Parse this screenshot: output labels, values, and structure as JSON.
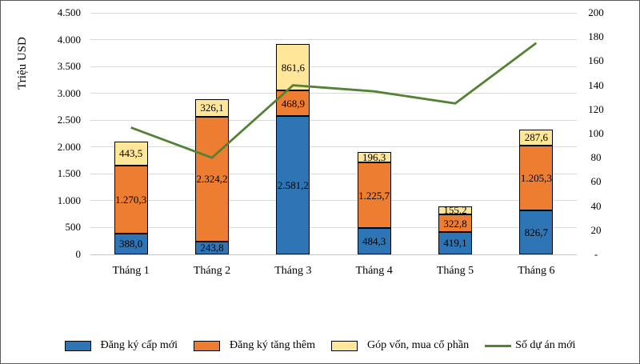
{
  "chart_data": {
    "type": "combo-stacked-bar-line",
    "title": "",
    "categories": [
      "Tháng 1",
      "Tháng 2",
      "Tháng 3",
      "Tháng 4",
      "Tháng 5",
      "Tháng 6"
    ],
    "series": [
      {
        "name": "Đăng ký cấp mới",
        "type": "bar",
        "stacked": true,
        "axis": "left",
        "color": "#2E75B6",
        "values": [
          388.0,
          243.8,
          2581.2,
          484.3,
          419.1,
          826.7
        ],
        "labels": [
          "388,0",
          "243,8",
          "2.581,2",
          "484,3",
          "419,1",
          "826,7"
        ]
      },
      {
        "name": "Đăng ký tăng thêm",
        "type": "bar",
        "stacked": true,
        "axis": "left",
        "color": "#ED7D31",
        "values": [
          1270.3,
          2324.2,
          468.9,
          1225.7,
          322.8,
          1205.3
        ],
        "labels": [
          "1.270,3",
          "2.324,2",
          "468,9",
          "1.225,7",
          "322,8",
          "1.205,3"
        ]
      },
      {
        "name": "Góp vốn, mua cổ phần",
        "type": "bar",
        "stacked": true,
        "axis": "left",
        "color": "#FFE699",
        "values": [
          443.5,
          326.1,
          861.6,
          196.3,
          155.2,
          287.6
        ],
        "labels": [
          "443,5",
          "326,1",
          "861,6",
          "196,3",
          "155,2",
          "287,6"
        ]
      },
      {
        "name": "Số dự án mới",
        "type": "line",
        "axis": "right",
        "color": "#548235",
        "values": [
          105,
          80,
          140,
          135,
          125,
          175
        ]
      }
    ],
    "left_axis": {
      "title": "Triệu USD",
      "min": 0,
      "max": 4500,
      "step": 500,
      "ticks": [
        "4.500",
        "4.000",
        "3.500",
        "3.000",
        "2.500",
        "2.000",
        "1.500",
        "1.000",
        "500",
        "0"
      ]
    },
    "right_axis": {
      "min": 0,
      "max": 200,
      "step": 20,
      "ticks": [
        "200",
        "180",
        "160",
        "140",
        "120",
        "100",
        "80",
        "60",
        "40",
        "20",
        "-"
      ]
    },
    "grid": "horizontal",
    "legend_position": "bottom",
    "line_values_estimated": true
  }
}
